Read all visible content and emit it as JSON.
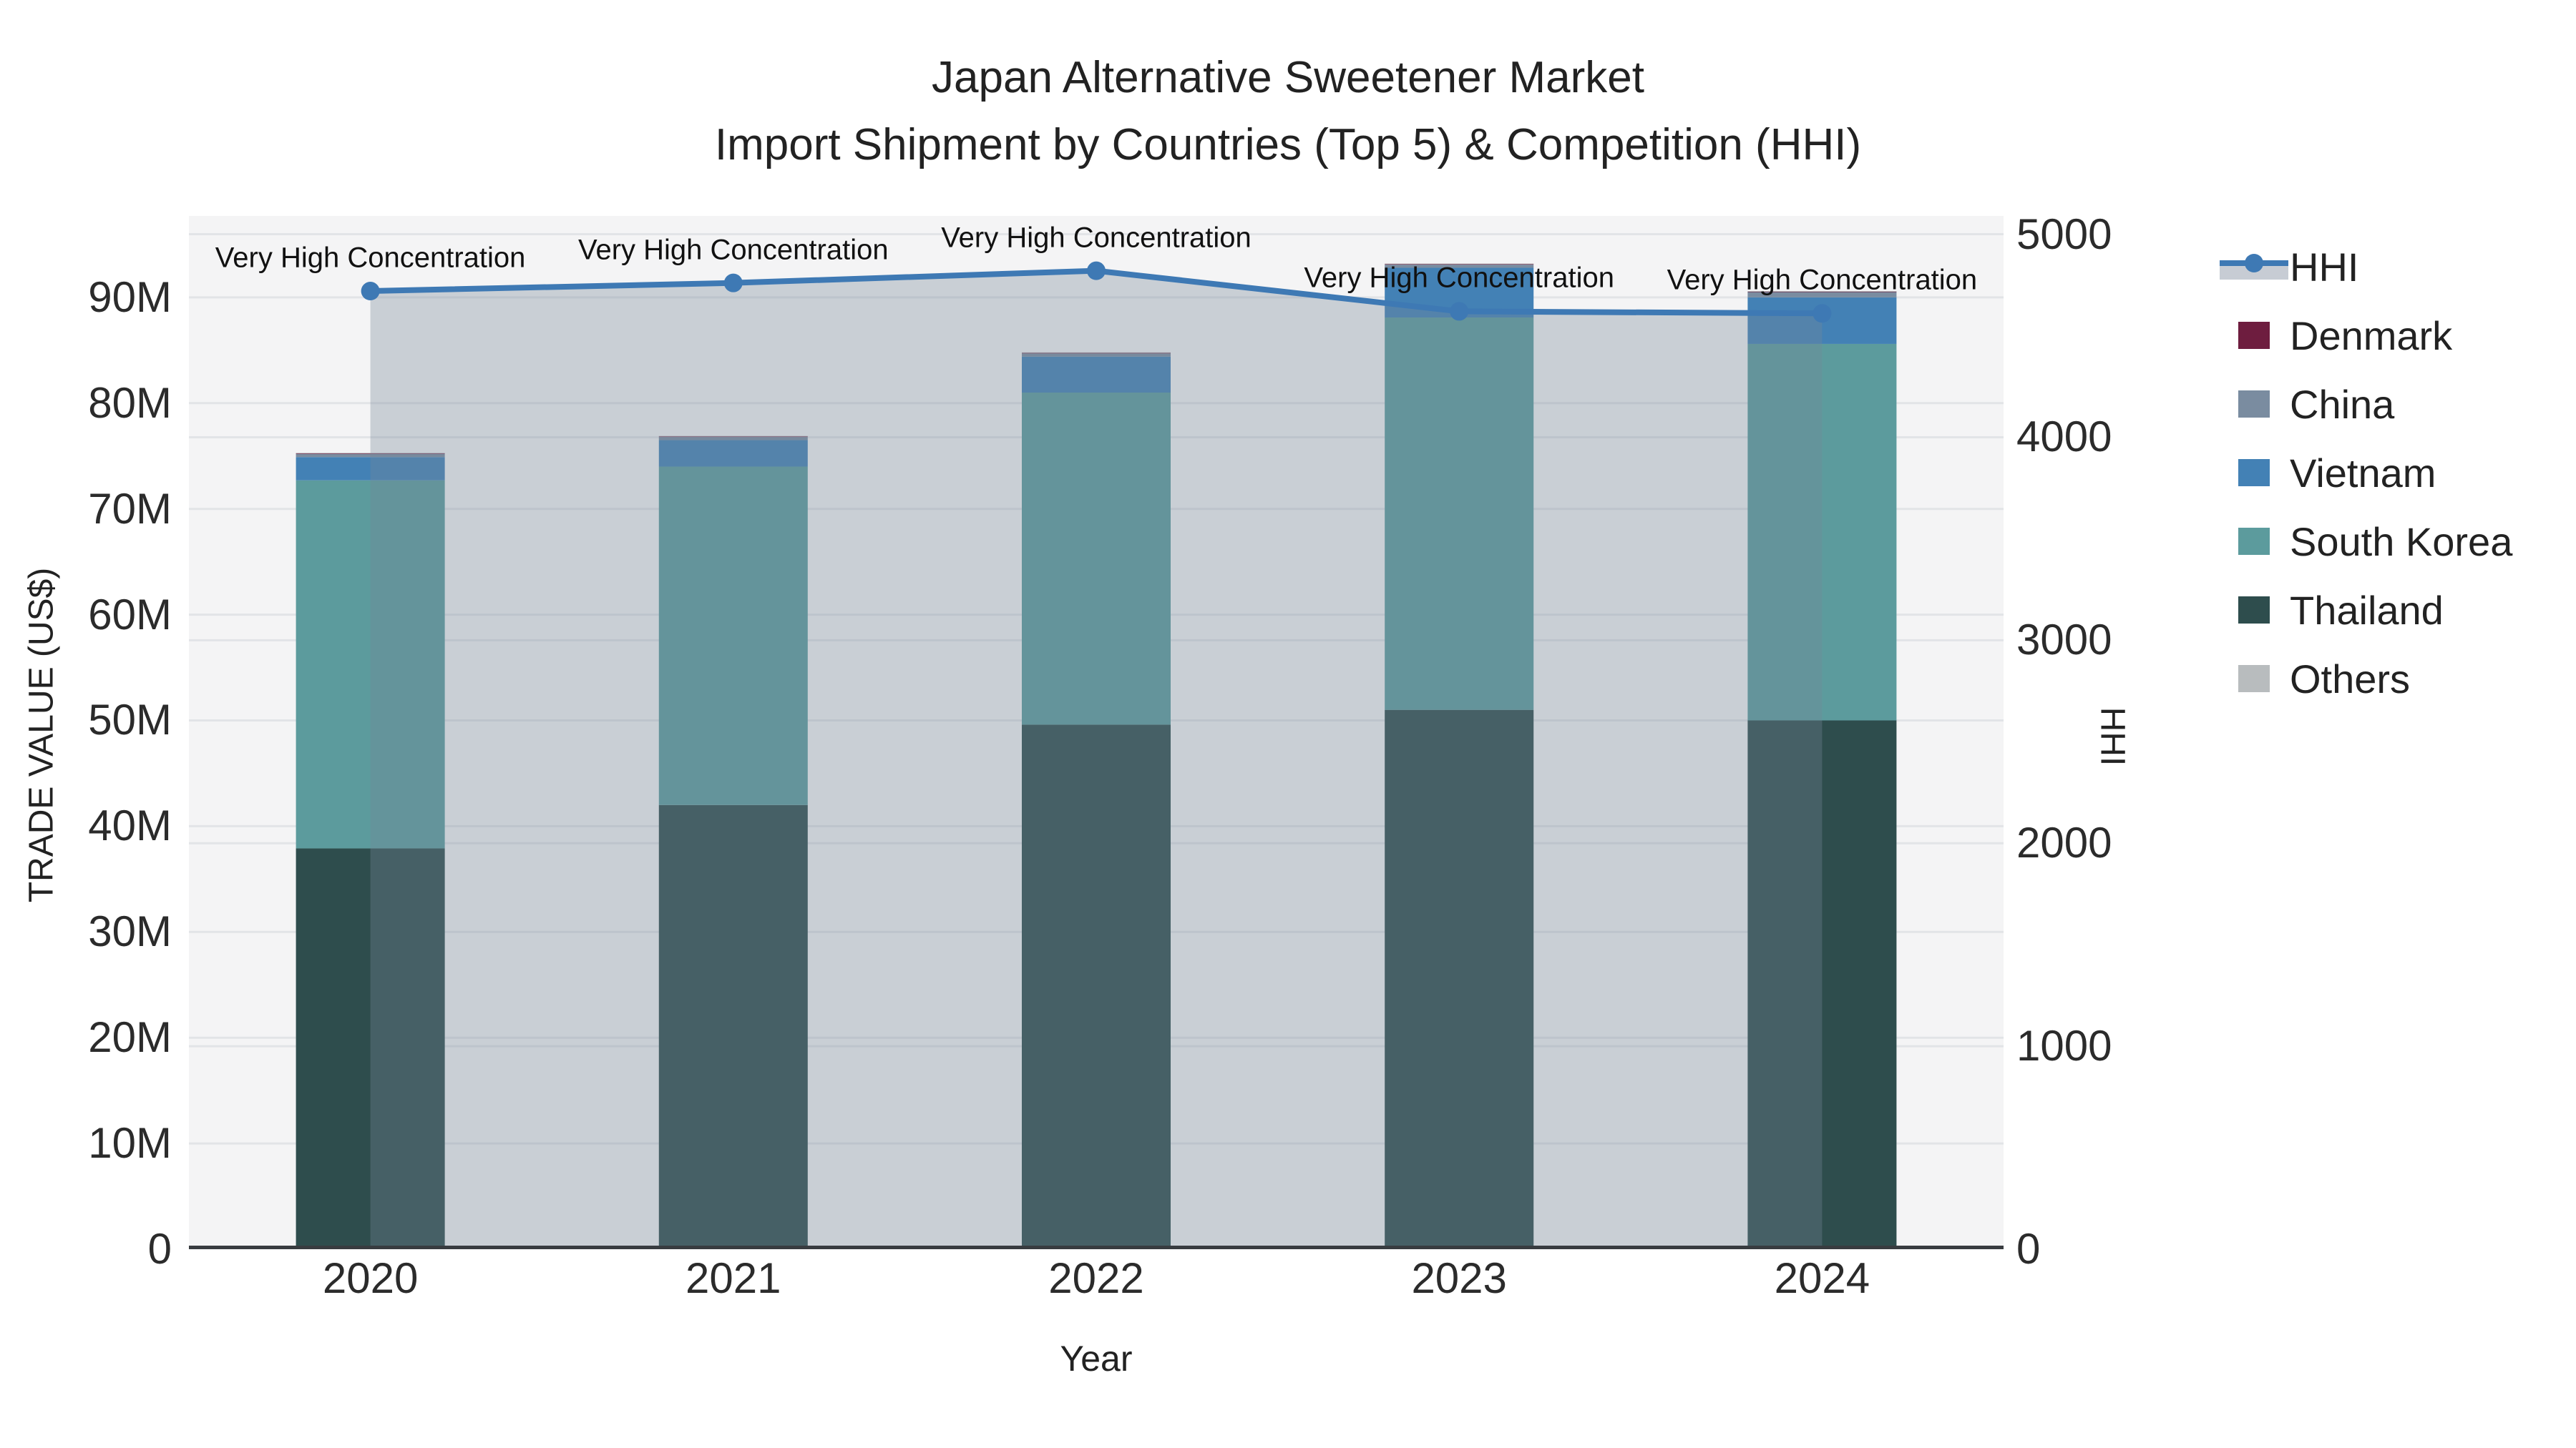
{
  "chart_data": {
    "type": "stacked-bar+line",
    "title": "Japan Alternative Sweetener Market\nImport Shipment by Countries (Top 5) & Competition (HHI)",
    "title_line1": "Japan Alternative Sweetener Market",
    "title_line2": "Import Shipment by Countries (Top 5) & Competition (HHI)",
    "xlabel": "Year",
    "ylabel": "TRADE VALUE (US$)",
    "y2label": "HHI",
    "categories": [
      "2020",
      "2021",
      "2022",
      "2023",
      "2024"
    ],
    "bar_value_unit": "USD millions",
    "series": [
      {
        "name": "Thailand",
        "color": "#2E4D4D",
        "values": [
          37.9,
          42.0,
          49.6,
          51.0,
          50.0
        ]
      },
      {
        "name": "South Korea",
        "color": "#5C9B9D",
        "values": [
          34.8,
          32.0,
          31.4,
          37.1,
          35.6
        ]
      },
      {
        "name": "Vietnam",
        "color": "#4381B5",
        "values": [
          2.2,
          2.5,
          3.4,
          4.7,
          4.4
        ]
      },
      {
        "name": "China",
        "color": "#7A8CA0",
        "values": [
          0.3,
          0.3,
          0.3,
          0.3,
          0.5
        ]
      },
      {
        "name": "Denmark",
        "color": "#6E1D3F",
        "values": [
          0.05,
          0.05,
          0.05,
          0.05,
          0.05
        ]
      },
      {
        "name": "Others",
        "color": "#B8BCBE",
        "values": [
          0.05,
          0.05,
          0.05,
          0.05,
          0.05
        ]
      }
    ],
    "line_series": {
      "name": "HHI",
      "axis": "y2",
      "color": "#3E79B4",
      "area_fill": "rgba(118,134,152,0.34)",
      "values": [
        4720,
        4760,
        4820,
        4620,
        4610
      ]
    },
    "annotations": [
      {
        "category": "2020",
        "text": "Very High Concentration"
      },
      {
        "category": "2021",
        "text": "Very High Concentration"
      },
      {
        "category": "2022",
        "text": "Very High Concentration"
      },
      {
        "category": "2023",
        "text": "Very High Concentration"
      },
      {
        "category": "2024",
        "text": "Very High Concentration"
      }
    ],
    "y1_axis": {
      "range": [
        0,
        97.7
      ],
      "ticks": [
        {
          "label": "0",
          "value": 0
        },
        {
          "label": "10M",
          "value": 10
        },
        {
          "label": "20M",
          "value": 20
        },
        {
          "label": "30M",
          "value": 30
        },
        {
          "label": "40M",
          "value": 40
        },
        {
          "label": "50M",
          "value": 50
        },
        {
          "label": "60M",
          "value": 60
        },
        {
          "label": "70M",
          "value": 70
        },
        {
          "label": "80M",
          "value": 80
        },
        {
          "label": "90M",
          "value": 90
        }
      ]
    },
    "y2_axis": {
      "range": [
        0,
        5090
      ],
      "ticks": [
        {
          "label": "0",
          "value": 0
        },
        {
          "label": "1000",
          "value": 1000
        },
        {
          "label": "2000",
          "value": 2000
        },
        {
          "label": "3000",
          "value": 3000
        },
        {
          "label": "4000",
          "value": 4000
        },
        {
          "label": "5000",
          "value": 5000
        }
      ]
    },
    "grid": true,
    "legend_position": "right",
    "legend": [
      {
        "label": "HHI",
        "color": "#3E79B4",
        "marker": "line",
        "band_color": "#C7CCD4"
      },
      {
        "label": "Denmark",
        "color": "#6E1D3F",
        "marker": "square"
      },
      {
        "label": "China",
        "color": "#7A8CA0",
        "marker": "square"
      },
      {
        "label": "Vietnam",
        "color": "#4381B5",
        "marker": "square"
      },
      {
        "label": "South Korea",
        "color": "#5C9B9D",
        "marker": "square"
      },
      {
        "label": "Thailand",
        "color": "#2E4D4D",
        "marker": "square"
      },
      {
        "label": "Others",
        "color": "#B8BCBE",
        "marker": "square"
      }
    ],
    "style": {
      "plot_bg": "#F4F4F5",
      "gridline_color": "#E2E4E7",
      "axis_line_color": "#383C40",
      "annotation_color": "#111111"
    }
  }
}
